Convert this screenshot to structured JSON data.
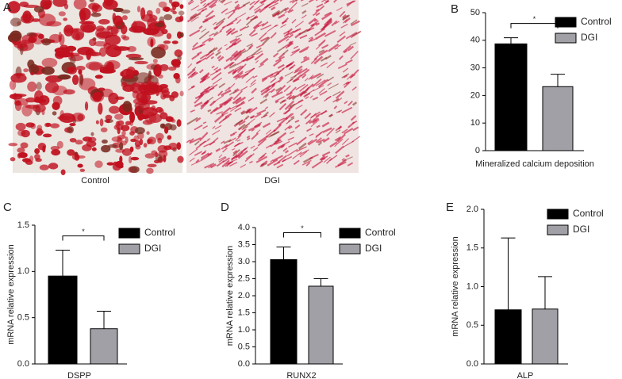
{
  "images": {
    "panel": "A",
    "captions": [
      "Control",
      "DGI"
    ]
  },
  "chart_data": [
    {
      "type": "bar",
      "panel": "B",
      "categories": [
        "Mineralized calcium deposition"
      ],
      "series": [
        {
          "name": "Control",
          "color": "#000000",
          "values": [
            38.7
          ],
          "errors": [
            2.2
          ]
        },
        {
          "name": "DGI",
          "color": "#a0a0a6",
          "values": [
            23.2
          ],
          "errors": [
            4.5
          ]
        }
      ],
      "significance": "*",
      "ylim": [
        0,
        50
      ],
      "yticks": [
        0,
        10,
        20,
        30,
        40,
        50
      ]
    },
    {
      "type": "bar",
      "panel": "C",
      "ylabel": "mRNA relative expression",
      "categories": [
        "DSPP"
      ],
      "series": [
        {
          "name": "Control",
          "color": "#000000",
          "values": [
            0.95
          ],
          "errors": [
            0.28
          ]
        },
        {
          "name": "DGI",
          "color": "#a0a0a6",
          "values": [
            0.38
          ],
          "errors": [
            0.19
          ]
        }
      ],
      "significance": "*",
      "ylim": [
        0,
        1.5
      ],
      "yticks": [
        {
          "value": 0,
          "label": "0.0"
        },
        0.5,
        {
          "value": 1,
          "label": "1.0"
        },
        1.5
      ]
    },
    {
      "type": "bar",
      "panel": "D",
      "ylabel": "mRNA relative expression",
      "categories": [
        "RUNX2"
      ],
      "series": [
        {
          "name": "Control",
          "color": "#000000",
          "values": [
            3.06
          ],
          "errors": [
            0.37
          ]
        },
        {
          "name": "DGI",
          "color": "#a0a0a6",
          "values": [
            2.28
          ],
          "errors": [
            0.22
          ]
        }
      ],
      "significance": "*",
      "ylim": [
        0,
        4
      ],
      "yticks": [
        {
          "value": 0,
          "label": "0.0"
        },
        0.5,
        {
          "value": 1,
          "label": "1.0"
        },
        1.5,
        {
          "value": 2,
          "label": "2.0"
        },
        2.5,
        {
          "value": 3,
          "label": "3.0"
        },
        3.5,
        {
          "value": 4,
          "label": "4.0"
        }
      ]
    },
    {
      "type": "bar",
      "panel": "E",
      "ylabel": "mRNA relative expression",
      "categories": [
        "ALP"
      ],
      "series": [
        {
          "name": "Control",
          "color": "#000000",
          "values": [
            0.7
          ],
          "errors": [
            0.93
          ]
        },
        {
          "name": "DGI",
          "color": "#a0a0a6",
          "values": [
            0.71
          ],
          "errors": [
            0.42
          ]
        }
      ],
      "ylim": [
        0,
        2
      ],
      "yticks": [
        {
          "value": 0,
          "label": "0.0"
        },
        0.5,
        {
          "value": 1,
          "label": "1.0"
        },
        1.5,
        {
          "value": 2,
          "label": "2.0"
        }
      ]
    }
  ]
}
